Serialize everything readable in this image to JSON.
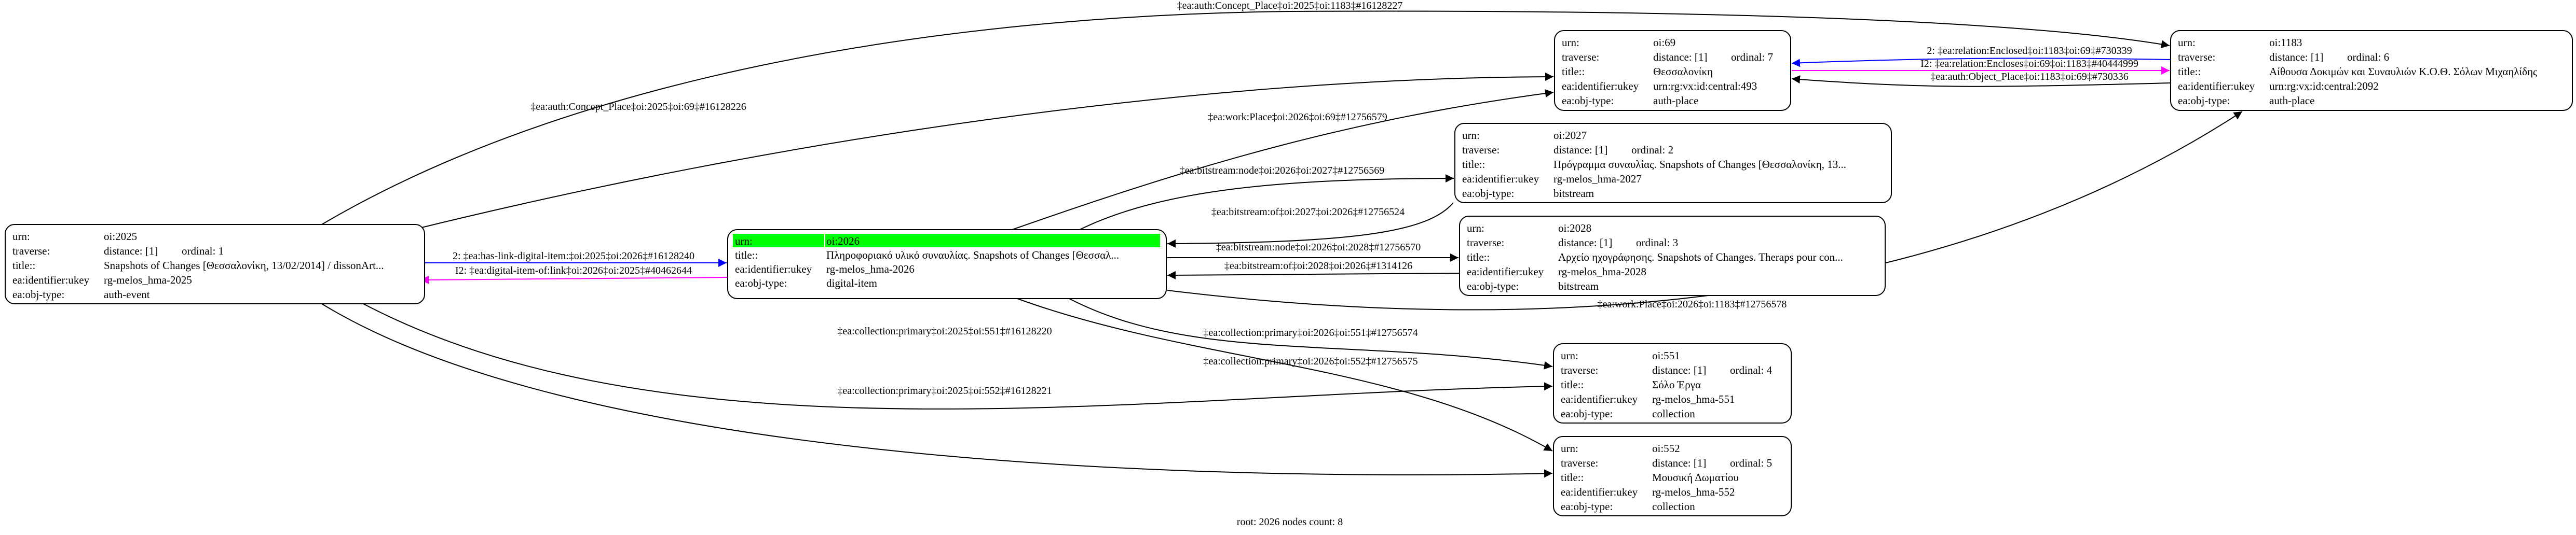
{
  "row_labels": {
    "urn": "urn:",
    "traverse": "traverse:",
    "title": "title::",
    "ukey": "ea:identifier:ukey",
    "obj_type": "ea:obj-type:"
  },
  "highlight_color": "#00ff00",
  "edge_colors": {
    "default": "#000000",
    "link": "#0000ff",
    "inverse": "#ff00ff"
  },
  "nodes": [
    {
      "id": "2025",
      "urn": "oi:2025",
      "distance": "distance: [1]",
      "ordinal": "ordinal: 1",
      "title": "Snapshots of Changes [Θεσσαλονίκη, 13/02/2014] / dissonArt...",
      "ukey": "rg-melos_hma-2025",
      "obj_type": "auth-event"
    },
    {
      "id": "2026",
      "urn": "oi:2026",
      "root": true,
      "title": "Πληροφοριακό υλικό συναυλίας. Snapshots of Changes [Θεσσαλ...",
      "ukey": "rg-melos_hma-2026",
      "obj_type": "digital-item"
    },
    {
      "id": "2027",
      "urn": "oi:2027",
      "distance": "distance: [1]",
      "ordinal": "ordinal: 2",
      "title": "Πρόγραμμα συναυλίας. Snapshots of Changes [Θεσσαλονίκη, 13...",
      "ukey": "rg-melos_hma-2027",
      "obj_type": "bitstream"
    },
    {
      "id": "2028",
      "urn": "oi:2028",
      "distance": "distance: [1]",
      "ordinal": "ordinal: 3",
      "title": "Αρχείο ηχογράφησης. Snapshots of Changes. Theraps pour con...",
      "ukey": "rg-melos_hma-2028",
      "obj_type": "bitstream"
    },
    {
      "id": "551",
      "urn": "oi:551",
      "distance": "distance: [1]",
      "ordinal": "ordinal: 4",
      "title": "Σόλο Έργα",
      "ukey": "rg-melos_hma-551",
      "obj_type": "collection"
    },
    {
      "id": "552",
      "urn": "oi:552",
      "distance": "distance: [1]",
      "ordinal": "ordinal: 5",
      "title": "Μουσική Δωματίου",
      "ukey": "rg-melos_hma-552",
      "obj_type": "collection"
    },
    {
      "id": "1183",
      "urn": "oi:1183",
      "distance": "distance: [1]",
      "ordinal": "ordinal: 6",
      "title": "Αίθουσα Δοκιμών και Συναυλιών Κ.Ο.Θ. Σόλων Μιχαηλίδης",
      "ukey": "urn:rg:vx:id:central:2092",
      "obj_type": "auth-place"
    },
    {
      "id": "69",
      "urn": "oi:69",
      "distance": "distance: [1]",
      "ordinal": "ordinal: 7",
      "title": "Θεσσαλονίκη",
      "ukey": "urn:rg:vx:id:central:493",
      "obj_type": "auth-place"
    }
  ],
  "edges": [
    {
      "from": "2025",
      "to": "1183",
      "kind": "default",
      "label": "‡ea:auth:Concept_Place‡oi:2025‡oi:1183‡#16128227"
    },
    {
      "from": "2025",
      "to": "69",
      "kind": "default",
      "label": "‡ea:auth:Concept_Place‡oi:2025‡oi:69‡#16128226"
    },
    {
      "from": "2026",
      "to": "69",
      "kind": "default",
      "label": "‡ea:work:Place‡oi:2026‡oi:69‡#12756579"
    },
    {
      "from": "2026",
      "to": "2027",
      "kind": "default",
      "label": "‡ea:bitstream:node‡oi:2026‡oi:2027‡#12756569"
    },
    {
      "from": "2027",
      "to": "2026",
      "kind": "default",
      "label": "‡ea:bitstream:of‡oi:2027‡oi:2026‡#12756524"
    },
    {
      "from": "2026",
      "to": "2028",
      "kind": "default",
      "label": "‡ea:bitstream:node‡oi:2026‡oi:2028‡#12756570"
    },
    {
      "from": "2028",
      "to": "2026",
      "kind": "default",
      "label": "‡ea:bitstream:of‡oi:2028‡oi:2026‡#1314126"
    },
    {
      "from": "2026",
      "to": "1183",
      "kind": "default",
      "label": "‡ea:work:Place‡oi:2026‡oi:1183‡#12756578"
    },
    {
      "from": "2025",
      "to": "2026",
      "kind": "link",
      "label": "2: ‡ea:has-link-digital-item:‡oi:2025‡oi:2026‡#16128240"
    },
    {
      "from": "2026",
      "to": "2025",
      "kind": "inverse",
      "label": "I2: ‡ea:digital-item-of:link‡oi:2026‡oi:2025‡#40462644"
    },
    {
      "from": "2025",
      "to": "551",
      "kind": "default",
      "label": "‡ea:collection:primary‡oi:2025‡oi:551‡#16128220"
    },
    {
      "from": "2025",
      "to": "552",
      "kind": "default",
      "label": "‡ea:collection:primary‡oi:2025‡oi:552‡#16128221"
    },
    {
      "from": "2026",
      "to": "551",
      "kind": "default",
      "label": "‡ea:collection:primary‡oi:2026‡oi:551‡#12756574"
    },
    {
      "from": "2026",
      "to": "552",
      "kind": "default",
      "label": "‡ea:collection:primary‡oi:2026‡oi:552‡#12756575"
    },
    {
      "from": "1183",
      "to": "69",
      "kind": "link",
      "label": "2: ‡ea:relation:Enclosed‡oi:1183‡oi:69‡#730339"
    },
    {
      "from": "69",
      "to": "1183",
      "kind": "inverse",
      "label": "I2: ‡ea:relation:Encloses‡oi:69‡oi:1183‡#40444999"
    },
    {
      "from": "1183",
      "to": "69",
      "kind": "default",
      "label": "‡ea:auth:Object_Place‡oi:1183‡oi:69‡#730336"
    }
  ],
  "footer": "root: 2026 nodes count: 8"
}
